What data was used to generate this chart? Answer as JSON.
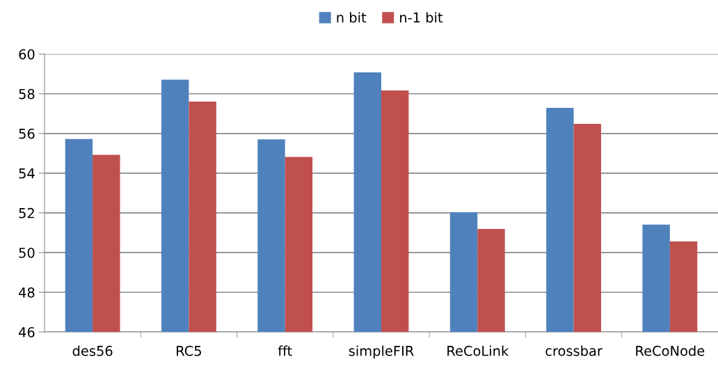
{
  "chart_data": {
    "type": "bar",
    "categories": [
      "des56",
      "RC5",
      "fft",
      "simpleFIR",
      "ReCoLink",
      "crossbar",
      "ReCoNode"
    ],
    "series": [
      {
        "name": "n bit",
        "color": "#4f81bd",
        "values": [
          55.72,
          58.71,
          55.7,
          59.08,
          52.03,
          57.29,
          51.41
        ]
      },
      {
        "name": "n-1 bit",
        "color": "#c0504d",
        "values": [
          54.92,
          57.61,
          54.82,
          58.17,
          51.19,
          56.48,
          50.56
        ]
      }
    ],
    "ylim": [
      46,
      60
    ],
    "yticks": [
      46,
      48,
      50,
      52,
      54,
      56,
      58,
      60
    ],
    "grid": "y",
    "legend": "top"
  }
}
